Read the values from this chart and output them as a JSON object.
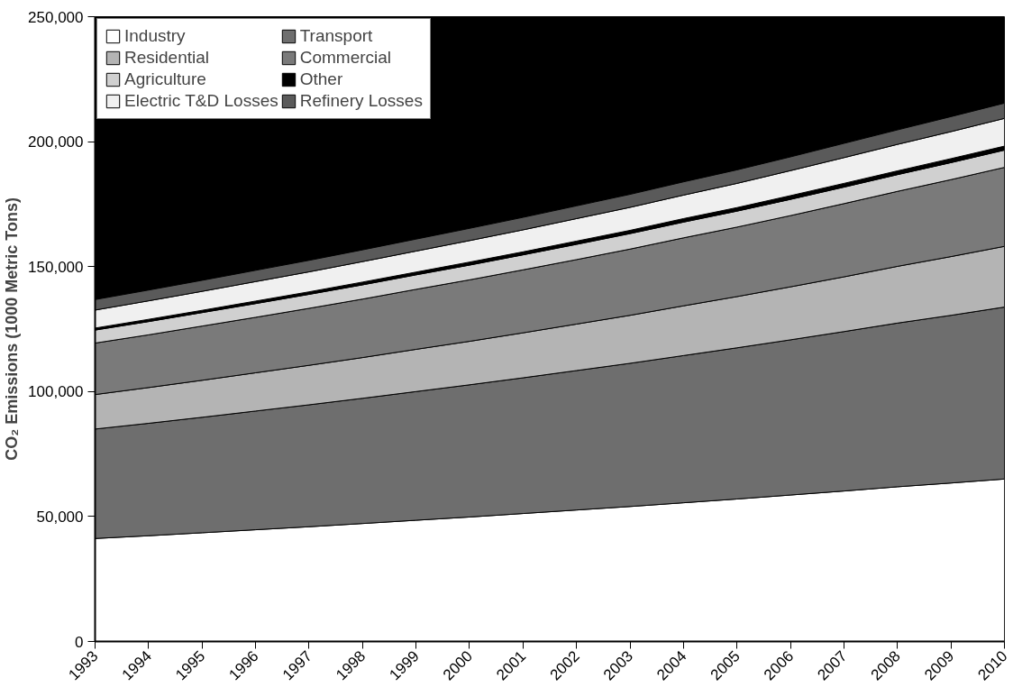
{
  "chart_data": {
    "type": "area",
    "stacked": true,
    "ylabel": "CO₂ Emissions (1000 Metric Tons)",
    "x": [
      1993,
      1994,
      1995,
      1996,
      1997,
      1998,
      1999,
      2000,
      2001,
      2002,
      2003,
      2004,
      2005,
      2006,
      2007,
      2008,
      2009,
      2010
    ],
    "xlim": [
      1993,
      2010
    ],
    "xticks": [
      1993,
      1994,
      1995,
      1996,
      1997,
      1998,
      1999,
      2000,
      2001,
      2002,
      2003,
      2004,
      2005,
      2006,
      2007,
      2008,
      2009,
      2010
    ],
    "ylim": [
      0,
      250000
    ],
    "yticks": [
      {
        "value": 0,
        "label": "0"
      },
      {
        "value": 50000,
        "label": "50,000"
      },
      {
        "value": 100000,
        "label": "100,000"
      },
      {
        "value": 150000,
        "label": "150,000"
      },
      {
        "value": 200000,
        "label": "200,000"
      },
      {
        "value": 250000,
        "label": "250,000"
      }
    ],
    "grid": false,
    "legend": "top left",
    "series": [
      {
        "name": "Industry",
        "color": "#ffffff",
        "values": [
          41200,
          42300,
          43500,
          44700,
          45900,
          47200,
          48500,
          49800,
          51200,
          52600,
          54000,
          55500,
          57000,
          58600,
          60200,
          61900,
          63400,
          65000
        ]
      },
      {
        "name": "Transport",
        "color": "#6e6e6e",
        "values": [
          43800,
          45000,
          46200,
          47500,
          48800,
          50100,
          51500,
          52900,
          54300,
          55800,
          57300,
          58900,
          60500,
          62100,
          63800,
          65500,
          67100,
          68800
        ]
      },
      {
        "name": "Residential",
        "color": "#b4b4b4",
        "values": [
          13800,
          14300,
          14800,
          15300,
          15800,
          16300,
          16900,
          17400,
          18000,
          18600,
          19200,
          19900,
          20500,
          21200,
          21900,
          22700,
          23500,
          24300
        ]
      },
      {
        "name": "Commercial",
        "color": "#7a7a7a",
        "values": [
          20600,
          21100,
          21700,
          22200,
          22800,
          23400,
          24000,
          24600,
          25200,
          25800,
          26500,
          27200,
          27800,
          28500,
          29300,
          30000,
          30800,
          31600
        ]
      },
      {
        "name": "Agriculture",
        "color": "#d0d0d0",
        "values": [
          5200,
          5300,
          5400,
          5500,
          5600,
          5700,
          5800,
          5900,
          6000,
          6100,
          6200,
          6300,
          6400,
          6500,
          6600,
          6700,
          6800,
          6900
        ]
      },
      {
        "name": "Other",
        "color": "#000000",
        "values": [
          800,
          900,
          900,
          1000,
          1000,
          1100,
          1100,
          1200,
          1200,
          1300,
          1300,
          1400,
          1400,
          1500,
          1500,
          1500,
          1600,
          1600
        ]
      },
      {
        "name": "Electric T&D Losses",
        "color": "#f0f0f0",
        "values": [
          7200,
          7400,
          7600,
          7800,
          8000,
          8200,
          8400,
          8600,
          8800,
          9000,
          9200,
          9400,
          9700,
          10000,
          10300,
          10600,
          10800,
          11100
        ]
      },
      {
        "name": "Refinery Losses",
        "color": "#5a5a5a",
        "values": [
          4200,
          4300,
          4400,
          4500,
          4600,
          4700,
          4800,
          4900,
          5000,
          5100,
          5200,
          5300,
          5400,
          5500,
          5700,
          5800,
          6000,
          6100
        ]
      }
    ]
  }
}
